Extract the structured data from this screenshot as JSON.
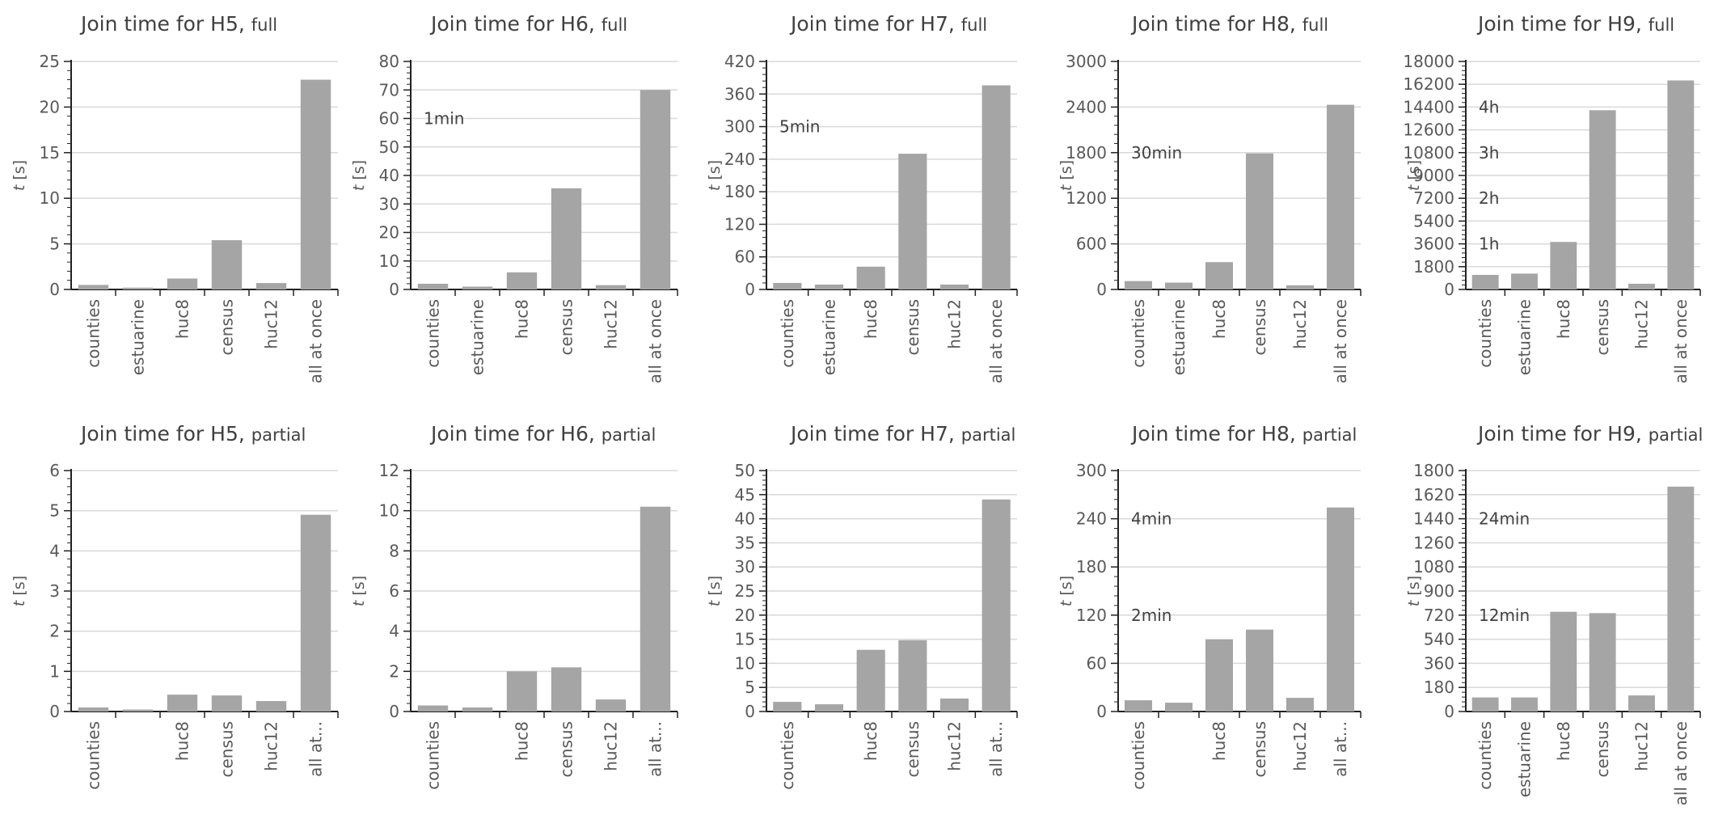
{
  "figure": {
    "bar_color": "#a5a5a5",
    "grid_color": "#d9d9d9",
    "axis_color": "#222222"
  },
  "chart_data": [
    {
      "type": "bar",
      "title": "Join time for H5,",
      "title_suffix": "full",
      "ylabel": "t [s]",
      "categories": [
        "counties",
        "estuarine",
        "huc8",
        "census",
        "huc12",
        "all at once"
      ],
      "values": [
        0.5,
        0.2,
        1.2,
        5.4,
        0.7,
        23.0
      ],
      "ylim": [
        0,
        25
      ],
      "yticks": [
        0,
        5,
        10,
        15,
        20,
        25
      ],
      "annotations": [],
      "grid": true
    },
    {
      "type": "bar",
      "title": "Join time for H6,",
      "title_suffix": "full",
      "ylabel": "t [s]",
      "categories": [
        "counties",
        "estuarine",
        "huc8",
        "census",
        "huc12",
        "all at once"
      ],
      "values": [
        2,
        1,
        6,
        35.5,
        1.5,
        70
      ],
      "ylim": [
        0,
        80
      ],
      "yticks": [
        0,
        10,
        20,
        30,
        40,
        50,
        60,
        70,
        80
      ],
      "annotations": [
        {
          "text": "1min",
          "y": 60
        }
      ],
      "grid": true
    },
    {
      "type": "bar",
      "title": "Join time for H7,",
      "title_suffix": "full",
      "ylabel": "t [s]",
      "categories": [
        "counties",
        "estuarine",
        "huc8",
        "census",
        "huc12",
        "all at once"
      ],
      "values": [
        12,
        9,
        42,
        250,
        9,
        376
      ],
      "ylim": [
        0,
        420
      ],
      "yticks": [
        0,
        60,
        120,
        180,
        240,
        300,
        360,
        420
      ],
      "annotations": [
        {
          "text": "5min",
          "y": 300
        }
      ],
      "grid": true
    },
    {
      "type": "bar",
      "title": "Join time for H8,",
      "title_suffix": "full",
      "ylabel": "t [s]",
      "categories": [
        "counties",
        "estuarine",
        "huc8",
        "census",
        "huc12",
        "all at once"
      ],
      "values": [
        110,
        90,
        360,
        1790,
        55,
        2430
      ],
      "ylim": [
        0,
        3000
      ],
      "yticks": [
        0,
        600,
        1200,
        1800,
        2400,
        3000
      ],
      "annotations": [
        {
          "text": "30min",
          "y": 1800
        }
      ],
      "grid": true
    },
    {
      "type": "bar",
      "title": "Join time for H9,",
      "title_suffix": "full",
      "ylabel": "t [s]",
      "categories": [
        "counties",
        "estuarine",
        "huc8",
        "census",
        "huc12",
        "all at once"
      ],
      "values": [
        1150,
        1250,
        3750,
        14150,
        450,
        16500
      ],
      "ylim": [
        0,
        18000
      ],
      "yticks": [
        0,
        1800,
        3600,
        5400,
        7200,
        9000,
        10800,
        12600,
        14400,
        16200,
        18000
      ],
      "annotations": [
        {
          "text": "1h",
          "y": 3600
        },
        {
          "text": "2h",
          "y": 7200
        },
        {
          "text": "3h",
          "y": 10800
        },
        {
          "text": "4h",
          "y": 14400
        }
      ],
      "grid": true
    },
    {
      "type": "bar",
      "title": "Join time for H5,",
      "title_suffix": "partial",
      "ylabel": "t [s]",
      "categories": [
        "counties",
        "",
        "huc8",
        "census",
        "huc12",
        "all at..."
      ],
      "values": [
        0.1,
        0.05,
        0.42,
        0.4,
        0.26,
        4.9
      ],
      "ylim": [
        0,
        6
      ],
      "yticks": [
        0,
        1,
        2,
        3,
        4,
        5,
        6
      ],
      "annotations": [],
      "grid": true
    },
    {
      "type": "bar",
      "title": "Join time for H6,",
      "title_suffix": "partial",
      "ylabel": "t [s]",
      "categories": [
        "counties",
        "",
        "huc8",
        "census",
        "huc12",
        "all at..."
      ],
      "values": [
        0.3,
        0.2,
        2.0,
        2.2,
        0.6,
        10.2
      ],
      "ylim": [
        0,
        12
      ],
      "yticks": [
        0,
        2,
        4,
        6,
        8,
        10,
        12
      ],
      "annotations": [],
      "grid": true
    },
    {
      "type": "bar",
      "title": "Join time for H7,",
      "title_suffix": "partial",
      "ylabel": "t [s]",
      "categories": [
        "counties",
        "",
        "huc8",
        "census",
        "huc12",
        "all at..."
      ],
      "values": [
        2.0,
        1.5,
        12.8,
        14.8,
        2.7,
        44.0
      ],
      "ylim": [
        0,
        50
      ],
      "yticks": [
        0,
        5,
        10,
        15,
        20,
        25,
        30,
        35,
        40,
        45,
        50
      ],
      "annotations": [],
      "grid": true
    },
    {
      "type": "bar",
      "title": "Join time for H8,",
      "title_suffix": "partial",
      "ylabel": "t [s]",
      "categories": [
        "counties",
        "",
        "huc8",
        "census",
        "huc12",
        "all at..."
      ],
      "values": [
        14,
        11,
        90,
        102,
        17,
        254
      ],
      "ylim": [
        0,
        300
      ],
      "yticks": [
        0,
        60,
        120,
        180,
        240,
        300
      ],
      "annotations": [
        {
          "text": "2min",
          "y": 120
        },
        {
          "text": "4min",
          "y": 240
        }
      ],
      "grid": true
    },
    {
      "type": "bar",
      "title": "Join time for H9,",
      "title_suffix": "partial",
      "ylabel": "t [s]",
      "categories": [
        "counties",
        "estuarine",
        "huc8",
        "census",
        "huc12",
        "all at once"
      ],
      "values": [
        105,
        105,
        745,
        735,
        120,
        1680
      ],
      "ylim": [
        0,
        1800
      ],
      "yticks": [
        0,
        180,
        360,
        540,
        720,
        900,
        1080,
        1260,
        1440,
        1620,
        1800
      ],
      "annotations": [
        {
          "text": "12min",
          "y": 720
        },
        {
          "text": "24min",
          "y": 1440
        }
      ],
      "grid": true
    }
  ]
}
